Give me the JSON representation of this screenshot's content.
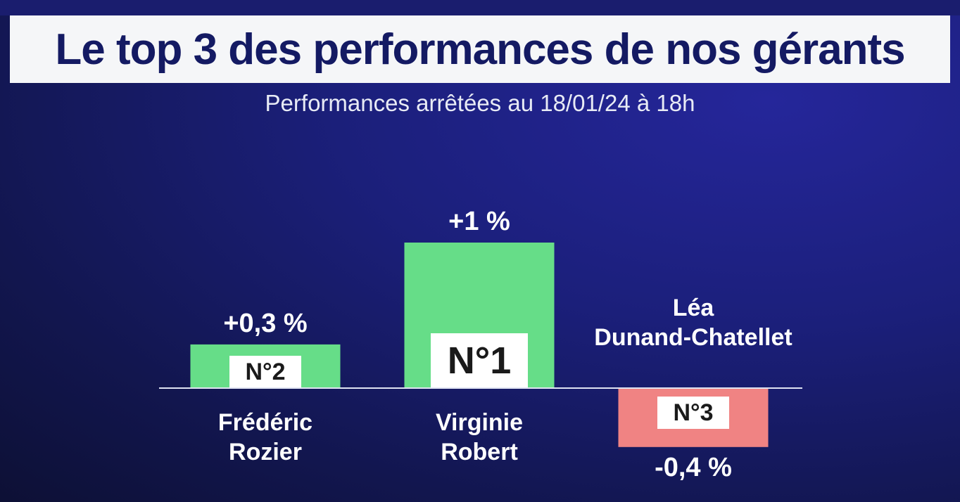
{
  "header": {
    "title": "Le top 3 des performances de nos gérants",
    "subtitle": "Performances arrêtées au 18/01/24 à 18h"
  },
  "chart_data": {
    "type": "bar",
    "title": "Le top 3 des performances de nos gérants",
    "subtitle": "Performances arrêtées au 18/01/24 à 18h",
    "xlabel": "",
    "ylabel": "",
    "unit": "%",
    "ylim": [
      -0.45,
      1.0
    ],
    "grid": false,
    "legend": "none",
    "categories": [
      "Frédéric Rozier",
      "Virginie Robert",
      "Léa Dunand-Chatellet"
    ],
    "name_lines": [
      [
        "Frédéric",
        "Rozier"
      ],
      [
        "Virginie",
        "Robert"
      ],
      [
        "Léa",
        "Dunand-Chatellet"
      ]
    ],
    "values": [
      0.3,
      1.0,
      -0.4
    ],
    "value_labels": [
      "+0,3 %",
      "+1 %",
      "-0,4 %"
    ],
    "ranks": [
      "N°2",
      "N°1",
      "N°3"
    ],
    "colors": {
      "positive": "#66dd88",
      "negative": "#f08383",
      "rank_box": "#ffffff",
      "baseline": "#dfe3f2",
      "title_text": "#141a63",
      "title_bg": "#f5f6f8"
    }
  }
}
